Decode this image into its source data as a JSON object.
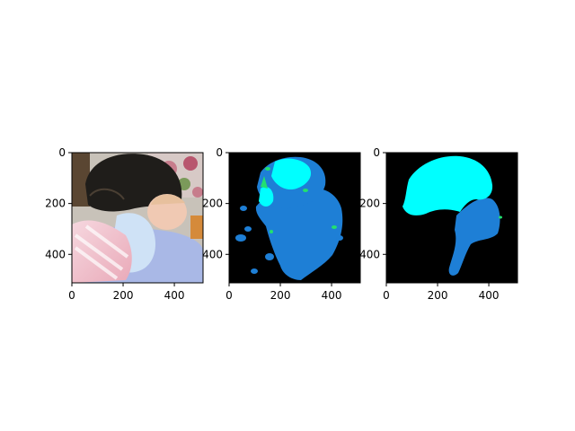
{
  "panels": [
    {
      "id": "photo",
      "description": "input photograph",
      "x_ticks": [
        "0",
        "200",
        "400"
      ],
      "y_ticks": [
        "0",
        "200",
        "400"
      ]
    },
    {
      "id": "prediction",
      "description": "predicted segmentation mask",
      "x_ticks": [
        "0",
        "200",
        "400"
      ],
      "y_ticks": [
        "0",
        "200",
        "400"
      ]
    },
    {
      "id": "ground-truth",
      "description": "ground-truth segmentation mask",
      "x_ticks": [
        "0",
        "200",
        "400"
      ],
      "y_ticks": [
        "0",
        "200",
        "400"
      ]
    }
  ],
  "colors": {
    "background": "#000000",
    "class_a": "#00ffff",
    "class_b": "#1e7fd6",
    "class_c": "#22e070"
  }
}
